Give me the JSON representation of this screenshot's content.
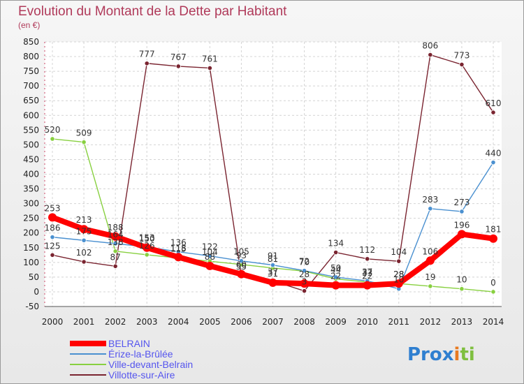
{
  "chart_data": {
    "type": "line",
    "title": "Evolution du Montant de la Dette par Habitant",
    "unit_label": "(en €)",
    "x": [
      "2000",
      "2001",
      "2002",
      "2003",
      "2004",
      "2005",
      "2006",
      "2007",
      "2008",
      "2009",
      "2010",
      "2011",
      "2012",
      "2013",
      "2014"
    ],
    "ylim": [
      -50,
      850
    ],
    "yticks": [
      -50,
      0,
      50,
      100,
      150,
      200,
      250,
      300,
      350,
      400,
      450,
      500,
      550,
      600,
      650,
      700,
      750,
      800,
      850
    ],
    "grid": true,
    "legend_position": "bottom-left",
    "series": [
      {
        "name": "BELRAIN",
        "color": "#ff0000",
        "values": [
          253,
          213,
          188,
          150,
          118,
          88,
          60,
          31,
          28,
          22,
          22,
          28,
          106,
          196,
          181
        ]
      },
      {
        "name": "Érize-la-Brûlée",
        "color": "#4a90d0",
        "values": [
          186,
          175,
          164,
          153,
          136,
          122,
          105,
          91,
          72,
          50,
          37,
          10,
          283,
          273,
          440
        ]
      },
      {
        "name": "Ville-devant-Belrain",
        "color": "#88d040",
        "values": [
          520,
          509,
          138,
          126,
          115,
          104,
          93,
          81,
          70,
          44,
          33,
          28,
          19,
          10,
          0
        ]
      },
      {
        "name": "Villotte-sur-Aire",
        "color": "#7a2430",
        "values": [
          125,
          102,
          87,
          777,
          767,
          761,
          55,
          37,
          3,
          134,
          112,
          104,
          806,
          773,
          610
        ]
      }
    ]
  },
  "logo": {
    "text": "Prox",
    "accent": "i",
    "end": "ti"
  }
}
